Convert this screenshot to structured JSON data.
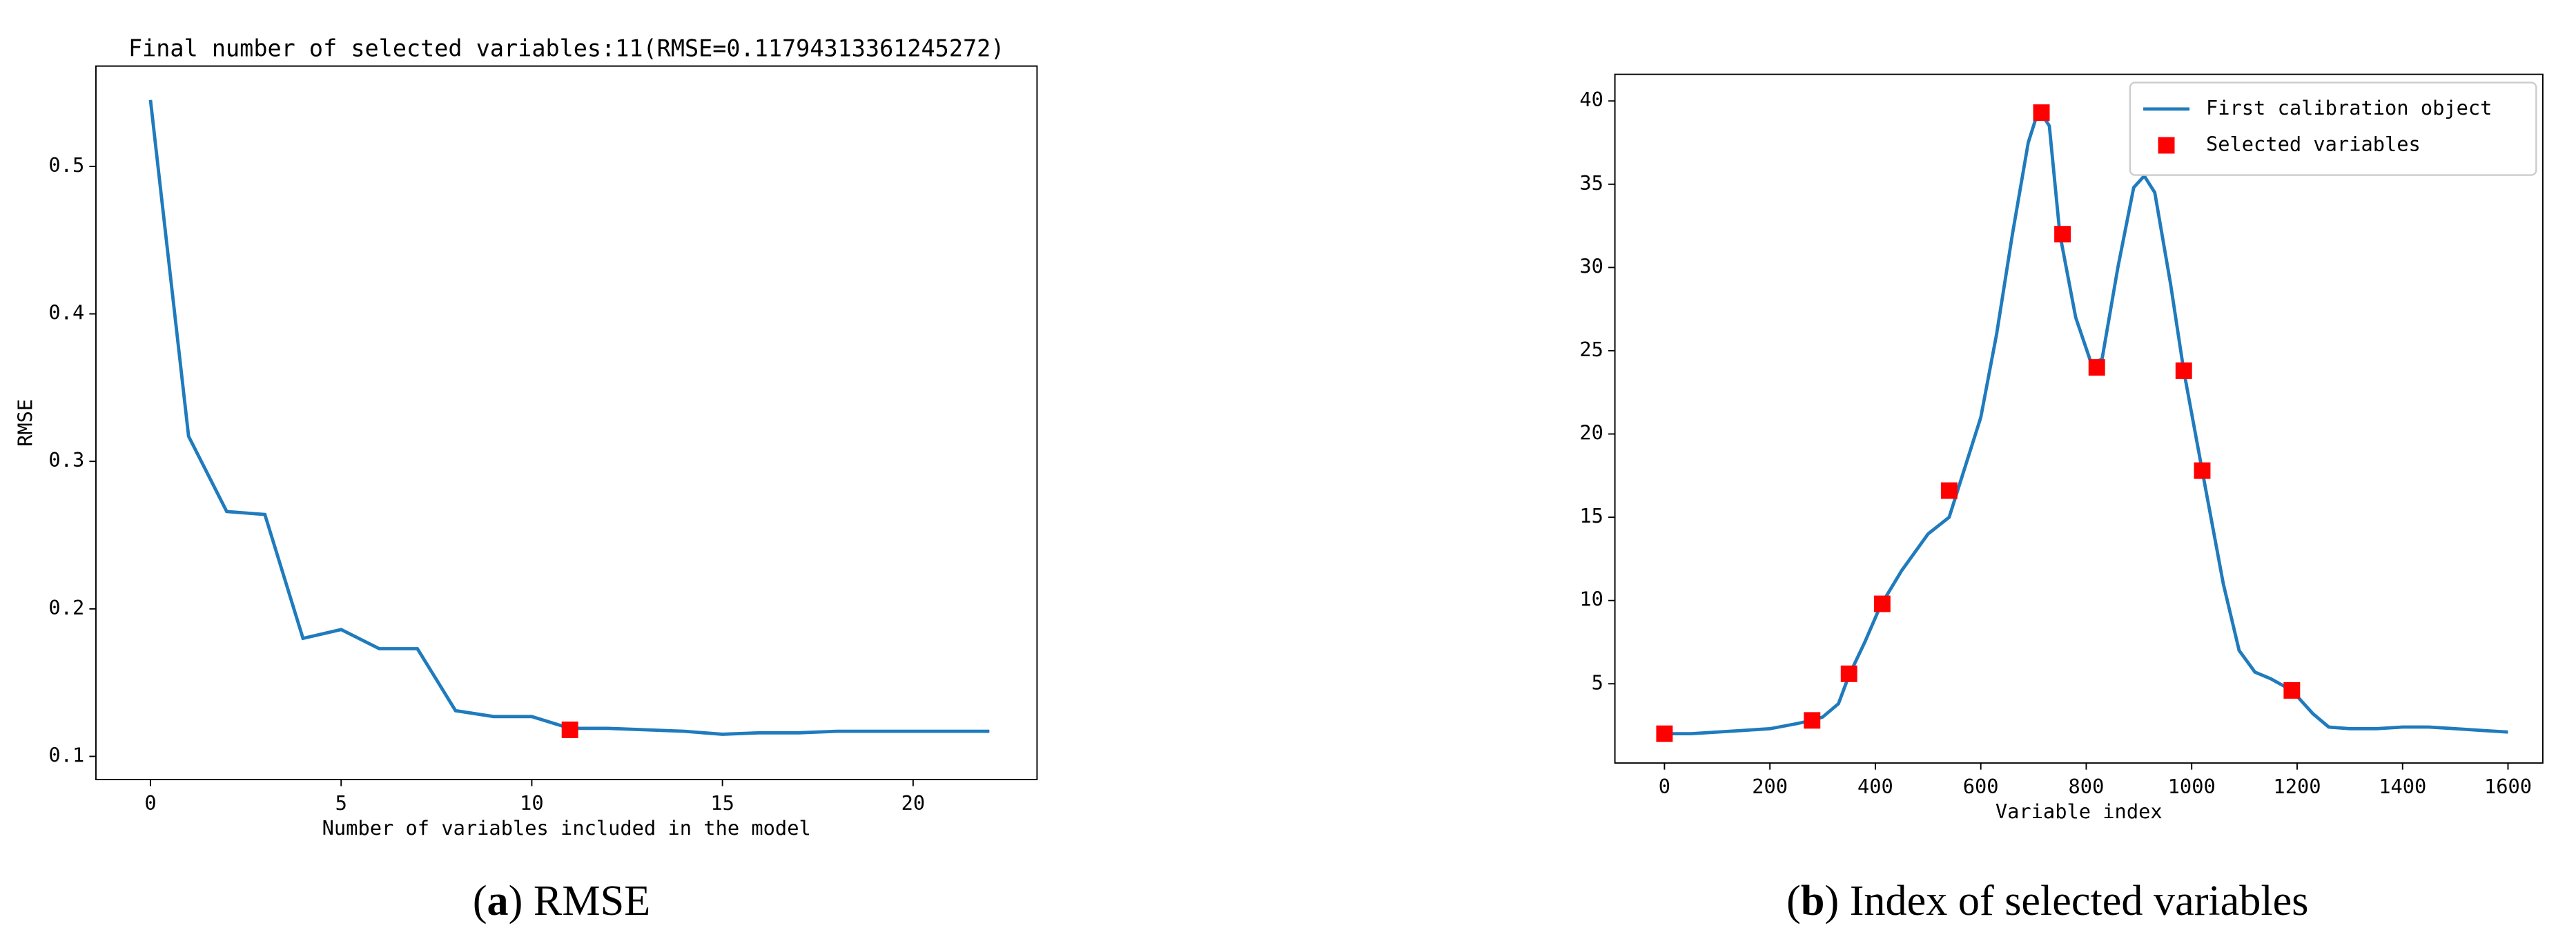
{
  "chart_data": [
    {
      "type": "line",
      "title": "Final number of selected variables:11(RMSE=0.11794313361245272)",
      "xlabel": "Number of variables included in the model",
      "ylabel": "RMSE",
      "caption": [
        "(",
        "a",
        ") RMSE"
      ],
      "xlim": [
        -1.43,
        23.25
      ],
      "ylim": [
        0.0843,
        0.568
      ],
      "xticks": [
        0,
        5,
        10,
        15,
        20
      ],
      "yticks": [
        0.1,
        0.2,
        0.3,
        0.4,
        0.5
      ],
      "series": [
        {
          "type": "line",
          "color": "#1f7bbd",
          "x": [
            0,
            1,
            2,
            3,
            4,
            5,
            6,
            7,
            8,
            9,
            10,
            11,
            12,
            13,
            14,
            15,
            16,
            17,
            18,
            19,
            20,
            21,
            22
          ],
          "values": [
            0.545,
            0.317,
            0.266,
            0.264,
            0.18,
            0.186,
            0.173,
            0.173,
            0.131,
            0.127,
            0.127,
            0.119,
            0.119,
            0.118,
            0.117,
            0.115,
            0.116,
            0.116,
            0.117,
            0.117,
            0.117,
            0.117,
            0.117
          ]
        },
        {
          "type": "scatter",
          "color": "#ff0000",
          "x": [
            11
          ],
          "values": [
            0.118
          ]
        }
      ]
    },
    {
      "type": "line",
      "xlabel": "Variable index",
      "caption": [
        "(",
        "b",
        ") Index of selected variables"
      ],
      "xlim": [
        -94,
        1666
      ],
      "ylim": [
        0.24,
        41.6
      ],
      "xticks": [
        0,
        200,
        400,
        600,
        800,
        1000,
        1200,
        1400,
        1600
      ],
      "yticks": [
        5,
        10,
        15,
        20,
        25,
        30,
        35,
        40
      ],
      "legend": "upper right",
      "series": [
        {
          "type": "line",
          "name": "First calibration object",
          "color": "#1f7bbd",
          "x": [
            0,
            50,
            100,
            150,
            200,
            250,
            280,
            300,
            330,
            350,
            380,
            410,
            450,
            500,
            540,
            560,
            600,
            630,
            660,
            690,
            710,
            730,
            750,
            780,
            810,
            830,
            860,
            890,
            910,
            930,
            960,
            985,
            1020,
            1060,
            1090,
            1120,
            1150,
            1190,
            1230,
            1260,
            1300,
            1350,
            1400,
            1450,
            1500,
            1550,
            1600
          ],
          "values": [
            2.0,
            2.0,
            2.1,
            2.2,
            2.3,
            2.6,
            2.8,
            3.0,
            3.8,
            5.5,
            7.5,
            9.7,
            11.8,
            14.0,
            15.0,
            17.0,
            21.0,
            26,
            32,
            37.5,
            39.5,
            38.5,
            32.0,
            27,
            24.2,
            24.5,
            30,
            34.8,
            35.5,
            34.5,
            29,
            23.8,
            17.8,
            11,
            7.0,
            5.7,
            5.3,
            4.6,
            3.2,
            2.4,
            2.3,
            2.3,
            2.4,
            2.4,
            2.3,
            2.2,
            2.1
          ]
        },
        {
          "type": "scatter",
          "name": "Selected variables",
          "color": "#ff0000",
          "x": [
            0,
            280,
            350,
            413,
            540,
            715,
            755,
            820,
            985,
            1020,
            1190
          ],
          "values": [
            2.0,
            2.8,
            5.6,
            9.8,
            16.6,
            39.3,
            32.0,
            24.0,
            23.8,
            17.8,
            4.6
          ]
        }
      ]
    }
  ]
}
